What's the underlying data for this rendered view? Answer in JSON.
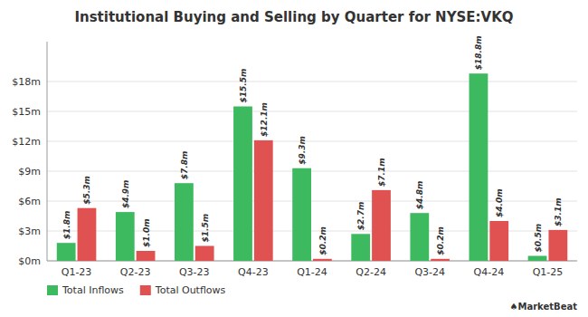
{
  "chart_data": {
    "type": "bar",
    "title": "Institutional Buying and Selling by Quarter for NYSE:VKQ",
    "categories": [
      "Q1-23",
      "Q2-23",
      "Q3-23",
      "Q4-23",
      "Q1-24",
      "Q2-24",
      "Q3-24",
      "Q4-24",
      "Q1-25"
    ],
    "series": [
      {
        "name": "Total Inflows",
        "color": "#3dba5f",
        "values": [
          1.8,
          4.9,
          7.8,
          15.5,
          9.3,
          2.7,
          4.8,
          18.8,
          0.5
        ],
        "value_labels": [
          "$1.8m",
          "$4.9m",
          "$7.8m",
          "$15.5m",
          "$9.3m",
          "$2.7m",
          "$4.8m",
          "$18.8m",
          "$0.5m"
        ]
      },
      {
        "name": "Total Outflows",
        "color": "#e05252",
        "values": [
          5.3,
          1.0,
          1.5,
          12.1,
          0.2,
          7.1,
          0.2,
          4.0,
          3.1
        ],
        "value_labels": [
          "$5.3m",
          "$1.0m",
          "$1.5m",
          "$12.1m",
          "$0.2m",
          "$7.1m",
          "$0.2m",
          "$4.0m",
          "$3.1m"
        ]
      }
    ],
    "ylim": [
      0,
      22
    ],
    "yticks": [
      {
        "value": 0,
        "label": "$0m"
      },
      {
        "value": 3,
        "label": "$3m"
      },
      {
        "value": 6,
        "label": "$6m"
      },
      {
        "value": 9,
        "label": "$9m"
      },
      {
        "value": 12,
        "label": "$12m"
      },
      {
        "value": 15,
        "label": "$15m"
      },
      {
        "value": 18,
        "label": "$18m"
      }
    ],
    "grid": true,
    "data_labels": true,
    "legend": "lower left",
    "annotations": [
      "♠MarketBeat"
    ]
  }
}
